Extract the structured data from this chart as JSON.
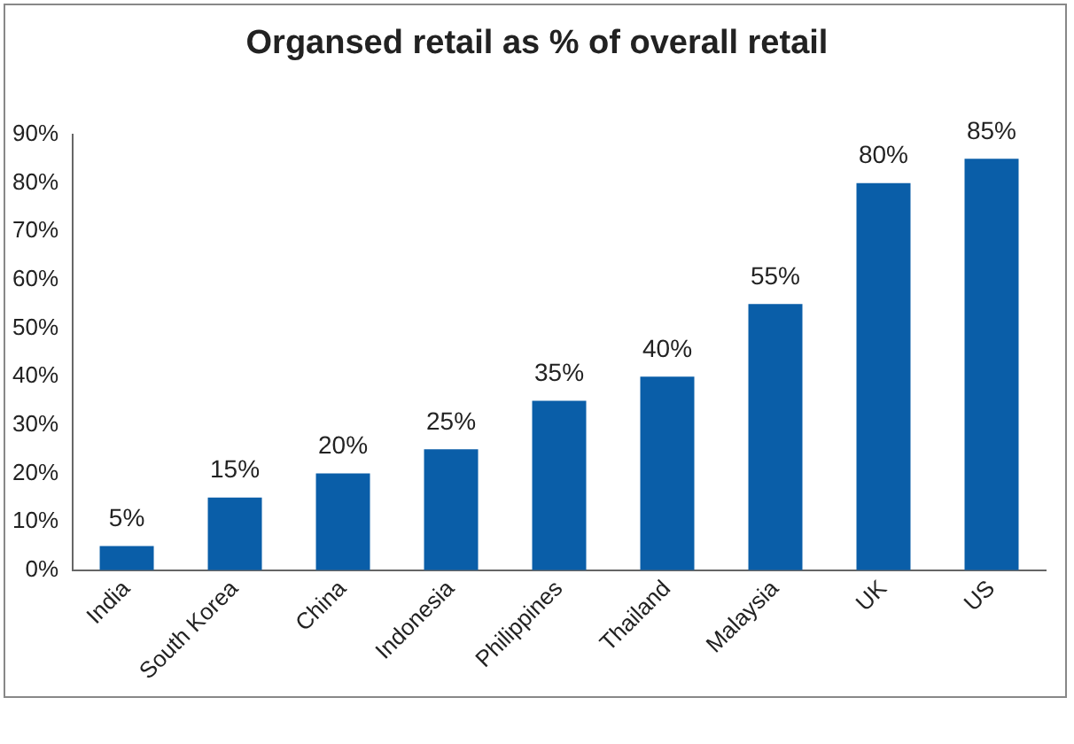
{
  "chart_data": {
    "type": "bar",
    "title": "Organsed retail as % of overall retail",
    "categories": [
      "India",
      "South Korea",
      "China",
      "Indonesia",
      "Philippines",
      "Thailand",
      "Malaysia",
      "UK",
      "US"
    ],
    "values": [
      5,
      15,
      20,
      25,
      35,
      40,
      55,
      80,
      85
    ],
    "value_labels": [
      "5%",
      "15%",
      "20%",
      "25%",
      "35%",
      "40%",
      "55%",
      "80%",
      "85%"
    ],
    "color": "#0a5ea8",
    "ylim": [
      0,
      90
    ],
    "yticks": [
      {
        "value": 0,
        "label": "0%"
      },
      {
        "value": 10,
        "label": "10%"
      },
      {
        "value": 20,
        "label": "20%"
      },
      {
        "value": 30,
        "label": "30%"
      },
      {
        "value": 40,
        "label": "40%"
      },
      {
        "value": 50,
        "label": "50%"
      },
      {
        "value": 60,
        "label": "60%"
      },
      {
        "value": 70,
        "label": "70%"
      },
      {
        "value": 80,
        "label": "80%"
      },
      {
        "value": 90,
        "label": "90%"
      }
    ],
    "grid": false,
    "legend": false
  }
}
